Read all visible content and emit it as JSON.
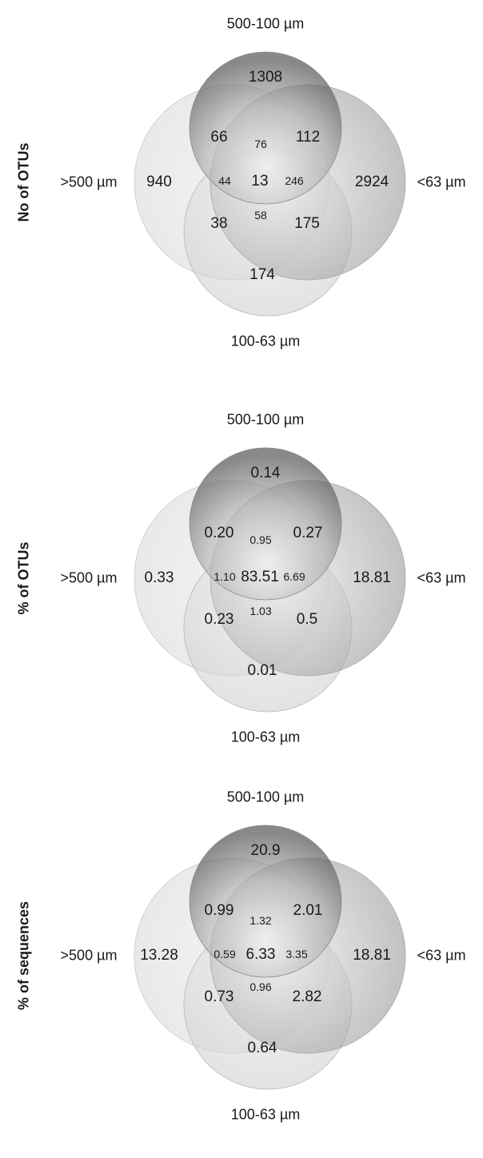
{
  "set_labels": {
    "top": "500-100 µm",
    "left": ">500 µm",
    "right": "<63 µm",
    "bottom": "100-63 µm"
  },
  "panels": [
    {
      "title": "No of OTUs",
      "regions": {
        "only_500_100": "1308",
        "only_gt500": "940",
        "only_lt63": "2924",
        "only_100_63": "174",
        "gt500_and_500_100": "66",
        "500_100_and_lt63": "112",
        "gt500_and_100_63": "38",
        "lt63_and_100_63": "175",
        "center_top": "76",
        "center_left": "44",
        "center": "13",
        "center_right": "246",
        "center_bottom": "58"
      }
    },
    {
      "title": "% of OTUs",
      "regions": {
        "only_500_100": "0.14",
        "only_gt500": "0.33",
        "only_lt63": "18.81",
        "only_100_63": "0.01",
        "gt500_and_500_100": "0.20",
        "500_100_and_lt63": "0.27",
        "gt500_and_100_63": "0.23",
        "lt63_and_100_63": "0.5",
        "center_top": "0.95",
        "center_left": "1.10",
        "center": "83.51",
        "center_right": "6.69",
        "center_bottom": "1.03"
      }
    },
    {
      "title": "% of sequences",
      "regions": {
        "only_500_100": "20.9",
        "only_gt500": "13.28",
        "only_lt63": "18.81",
        "only_100_63": "0.64",
        "gt500_and_500_100": "0.99",
        "500_100_and_lt63": "2.01",
        "gt500_and_100_63": "0.73",
        "lt63_and_100_63": "2.82",
        "center_top": "1.32",
        "center_left": "0.59",
        "center": "6.33",
        "center_right": "3.35",
        "center_bottom": "0.96"
      }
    }
  ]
}
